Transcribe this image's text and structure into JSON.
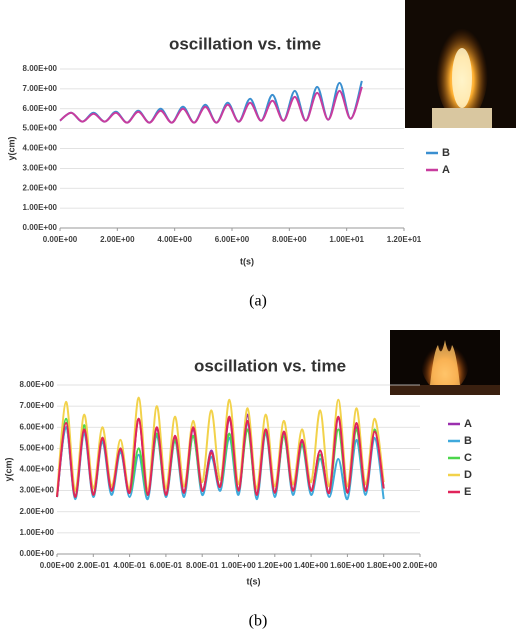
{
  "chart_data": [
    {
      "type": "line",
      "title": "oscillation vs. time",
      "x_label": "t(s)",
      "y_label": "y(cm)",
      "caption": "(a)",
      "grid": true,
      "x": [
        0,
        0.39,
        0.78,
        1.17,
        1.56,
        1.95,
        2.34,
        2.73,
        3.12,
        3.51,
        3.9,
        4.29,
        4.68,
        5.07,
        5.46,
        5.85,
        6.24,
        6.63,
        7.02,
        7.41,
        7.8,
        8.19,
        8.58,
        8.97,
        9.36,
        9.75,
        10.14,
        10.53
      ],
      "series": [
        {
          "name": "B",
          "color": "#3a8fd0",
          "values": [
            5.4,
            5.8,
            5.35,
            5.8,
            5.35,
            5.85,
            5.3,
            5.9,
            5.3,
            6.0,
            5.3,
            6.1,
            5.3,
            6.2,
            5.3,
            6.3,
            5.35,
            6.5,
            5.4,
            6.7,
            5.4,
            6.9,
            5.4,
            7.1,
            5.45,
            7.3,
            5.5,
            7.4
          ]
        },
        {
          "name": "A",
          "color": "#c83c9e",
          "values": [
            5.4,
            5.8,
            5.35,
            5.75,
            5.35,
            5.8,
            5.3,
            5.85,
            5.3,
            5.9,
            5.3,
            6.0,
            5.3,
            6.1,
            5.3,
            6.2,
            5.35,
            6.3,
            5.4,
            6.4,
            5.4,
            6.6,
            5.4,
            6.8,
            5.45,
            6.9,
            5.5,
            7.1
          ]
        }
      ],
      "xlim": [
        0,
        12
      ],
      "xticks": [
        {
          "value": 0,
          "label": "0.00E+00"
        },
        {
          "value": 2,
          "label": "2.00E+00"
        },
        {
          "value": 4,
          "label": "4.00E+00"
        },
        {
          "value": 6,
          "label": "6.00E+00"
        },
        {
          "value": 8,
          "label": "8.00E+00"
        },
        {
          "value": 10,
          "label": "1.00E+01"
        },
        {
          "value": 12,
          "label": "1.20E+01"
        }
      ],
      "ylim": [
        0,
        8
      ],
      "yticks": [
        {
          "value": 0,
          "label": "0.00E+00"
        },
        {
          "value": 1,
          "label": "1.00E+00"
        },
        {
          "value": 2,
          "label": "2.00E+00"
        },
        {
          "value": 3,
          "label": "3.00E+00"
        },
        {
          "value": 4,
          "label": "4.00E+00"
        },
        {
          "value": 5,
          "label": "5.00E+00"
        },
        {
          "value": 6,
          "label": "6.00E+00"
        },
        {
          "value": 7,
          "label": "7.00E+00"
        },
        {
          "value": 8,
          "label": "8.00E+00"
        }
      ]
    },
    {
      "type": "line",
      "title": "oscillation vs. time",
      "x_label": "t(s)",
      "y_label": "y(cm)",
      "caption": "(b)",
      "grid": true,
      "x": [
        0,
        0.05,
        0.1,
        0.15,
        0.2,
        0.25,
        0.3,
        0.35,
        0.4,
        0.45,
        0.5,
        0.55,
        0.6,
        0.65,
        0.7,
        0.75,
        0.8,
        0.85,
        0.9,
        0.95,
        1,
        1.05,
        1.1,
        1.15,
        1.2,
        1.25,
        1.3,
        1.35,
        1.4,
        1.45,
        1.5,
        1.55,
        1.6,
        1.65,
        1.7,
        1.75,
        1.8
      ],
      "series": [
        {
          "name": "A",
          "color": "#9b2fae",
          "values": [
            2.7,
            6.0,
            2.7,
            5.8,
            2.8,
            5.4,
            3.0,
            4.9,
            2.9,
            6.4,
            2.8,
            5.9,
            2.8,
            5.5,
            2.9,
            5.9,
            3.0,
            4.9,
            3.2,
            6.4,
            3.0,
            6.6,
            2.8,
            5.9,
            2.9,
            5.7,
            3.0,
            5.3,
            3.0,
            4.9,
            2.9,
            6.4,
            2.9,
            6.0,
            3.0,
            5.8,
            3.1
          ]
        },
        {
          "name": "B",
          "color": "#3fa9dc",
          "values": [
            2.7,
            6.0,
            2.6,
            5.7,
            2.7,
            5.3,
            2.8,
            4.8,
            2.7,
            4.7,
            2.6,
            5.6,
            2.7,
            5.3,
            2.7,
            5.6,
            2.8,
            4.6,
            3.0,
            5.5,
            2.8,
            6.2,
            2.6,
            5.7,
            2.7,
            5.6,
            2.8,
            5.1,
            2.8,
            4.5,
            2.7,
            4.5,
            2.6,
            5.4,
            2.8,
            5.5,
            2.6
          ]
        },
        {
          "name": "C",
          "color": "#4cd64c",
          "values": [
            2.7,
            6.4,
            2.7,
            6.1,
            2.8,
            5.5,
            3.0,
            5.0,
            2.9,
            5.0,
            2.8,
            5.7,
            2.8,
            5.4,
            2.9,
            5.6,
            3.0,
            4.8,
            3.2,
            5.7,
            3.0,
            5.9,
            2.8,
            5.8,
            2.9,
            5.6,
            3.0,
            5.2,
            3.0,
            4.7,
            2.9,
            5.9,
            2.9,
            5.9,
            3.0,
            5.9,
            3.1
          ]
        },
        {
          "name": "D",
          "color": "#f2d24a",
          "values": [
            2.8,
            7.2,
            3.0,
            6.6,
            3.1,
            6.0,
            3.2,
            5.4,
            3.1,
            7.4,
            3.0,
            7.0,
            3.1,
            6.5,
            3.2,
            6.3,
            3.4,
            6.8,
            3.5,
            7.3,
            3.3,
            6.9,
            3.1,
            6.6,
            3.2,
            6.3,
            3.3,
            5.9,
            3.4,
            6.8,
            3.2,
            7.3,
            3.2,
            6.9,
            3.3,
            6.4,
            3.4
          ]
        },
        {
          "name": "E",
          "color": "#e0245a",
          "values": [
            2.7,
            6.2,
            2.7,
            5.9,
            2.8,
            5.5,
            3.0,
            5.0,
            2.9,
            6.4,
            2.8,
            6.0,
            2.8,
            5.6,
            2.9,
            6.0,
            3.0,
            4.8,
            3.2,
            6.5,
            3.0,
            6.3,
            2.8,
            5.9,
            2.9,
            5.8,
            3.0,
            5.4,
            3.0,
            4.9,
            2.9,
            6.5,
            2.9,
            6.2,
            3.0,
            5.8,
            3.1
          ]
        }
      ],
      "xlim": [
        0,
        2
      ],
      "xticks": [
        {
          "value": 0,
          "label": "0.00E+00"
        },
        {
          "value": 0.2,
          "label": "2.00E-01"
        },
        {
          "value": 0.4,
          "label": "4.00E-01"
        },
        {
          "value": 0.6,
          "label": "6.00E-01"
        },
        {
          "value": 0.8,
          "label": "8.00E-01"
        },
        {
          "value": 1,
          "label": "1.00E+00"
        },
        {
          "value": 1.2,
          "label": "1.20E+00"
        },
        {
          "value": 1.4,
          "label": "1.40E+00"
        },
        {
          "value": 1.6,
          "label": "1.60E+00"
        },
        {
          "value": 1.8,
          "label": "1.80E+00"
        },
        {
          "value": 2,
          "label": "2.00E+00"
        }
      ],
      "ylim": [
        0,
        8
      ],
      "yticks": [
        {
          "value": 0,
          "label": "0.00E+00"
        },
        {
          "value": 1,
          "label": "1.00E+00"
        },
        {
          "value": 2,
          "label": "2.00E+00"
        },
        {
          "value": 3,
          "label": "3.00E+00"
        },
        {
          "value": 4,
          "label": "4.00E+00"
        },
        {
          "value": 5,
          "label": "5.00E+00"
        },
        {
          "value": 6,
          "label": "6.00E+00"
        },
        {
          "value": 7,
          "label": "7.00E+00"
        },
        {
          "value": 8,
          "label": "8.00E+00"
        }
      ]
    }
  ]
}
